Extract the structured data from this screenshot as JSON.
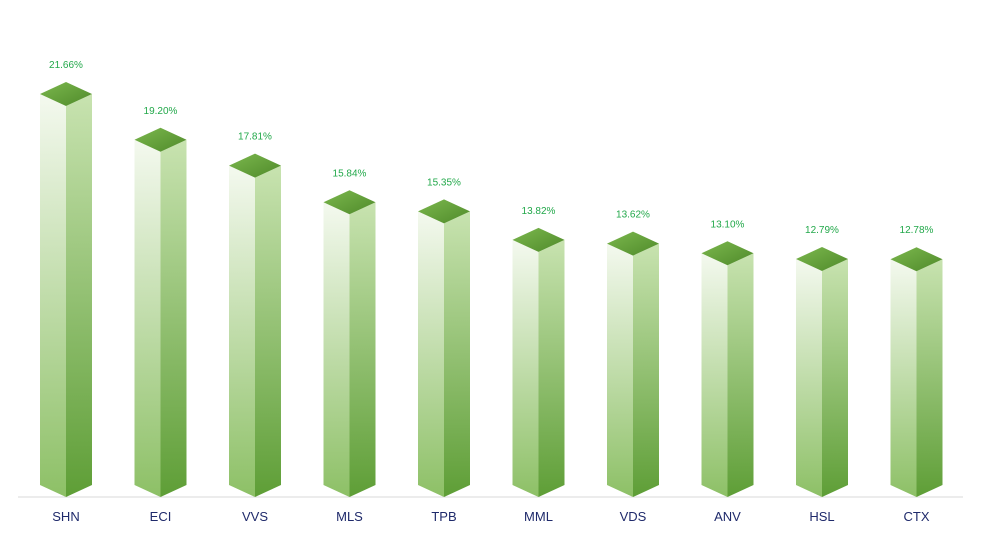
{
  "chart_data": {
    "type": "bar",
    "style": "3d-column",
    "categories": [
      "SHN",
      "ECI",
      "VVS",
      "MLS",
      "TPB",
      "MML",
      "VDS",
      "ANV",
      "HSL",
      "CTX"
    ],
    "values": [
      21.66,
      19.2,
      17.81,
      15.84,
      15.35,
      13.82,
      13.62,
      13.1,
      12.79,
      12.78
    ],
    "value_labels": [
      "21.66%",
      "19.20%",
      "17.81%",
      "15.84%",
      "15.35%",
      "13.82%",
      "13.62%",
      "13.10%",
      "12.79%",
      "12.78%"
    ],
    "title": "",
    "xlabel": "",
    "ylabel": "",
    "ylim": [
      0,
      21.66
    ],
    "grid": false,
    "legend": "none",
    "colors": {
      "top_face": "#6aa83f",
      "top_face_dark": "#4f8a2a",
      "front_light": "#f4f9ef",
      "front_dark": "#8dc066",
      "side_light": "#c8e3b0",
      "side_dark": "#5e9e36",
      "value_label": "#22a84a",
      "category_label": "#1f2a6b",
      "axis": "#d9d9d9"
    }
  }
}
